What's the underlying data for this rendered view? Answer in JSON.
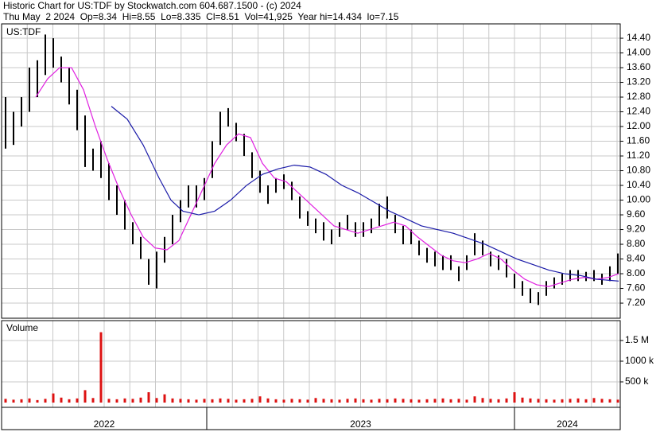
{
  "header": {
    "line1": "Historic Chart for US:TDF by Stockwatch.com 604.687.1500 - (c) 2024",
    "line2": "Thu May  2 2024  Op=8.34  Hi=8.55  Lo=8.335  Cl=8.51  Vol=41,925  Year hi=14.434  lo=7.15"
  },
  "chart_data": [
    {
      "type": "ohlc",
      "symbol": "US:TDF",
      "color": "#000000",
      "xlim": [
        -0.5,
        77.3
      ],
      "ylim": [
        6.79,
        14.79
      ],
      "grid": true,
      "yticks": [
        {
          "value": 7.2,
          "label": "7.20"
        },
        {
          "value": 7.6,
          "label": "7.60"
        },
        {
          "value": 8,
          "label": "8.00"
        },
        {
          "value": 8.4,
          "label": "8.40"
        },
        {
          "value": 8.8,
          "label": "8.80"
        },
        {
          "value": 9.2,
          "label": "9.20"
        },
        {
          "value": 9.6,
          "label": "9.60"
        },
        {
          "value": 10,
          "label": "10.00"
        },
        {
          "value": 10.4,
          "label": "10.40"
        },
        {
          "value": 10.8,
          "label": "10.80"
        },
        {
          "value": 11.2,
          "label": "11.20"
        },
        {
          "value": 11.6,
          "label": "11.60"
        },
        {
          "value": 12,
          "label": "12.00"
        },
        {
          "value": 12.4,
          "label": "12.40"
        },
        {
          "value": 12.8,
          "label": "12.80"
        },
        {
          "value": 13.2,
          "label": "13.20"
        },
        {
          "value": 13.6,
          "label": "13.60"
        },
        {
          "value": 14,
          "label": "14.00"
        },
        {
          "value": 14.4,
          "label": "14.40"
        }
      ],
      "high": [
        12.8,
        12.4,
        12.8,
        13.6,
        13.8,
        14.5,
        14.4,
        13.9,
        13.6,
        13.0,
        12.3,
        11.4,
        11.6,
        11.0,
        10.4,
        10.0,
        9.4,
        9.0,
        8.4,
        8.6,
        9.0,
        9.6,
        10.0,
        10.4,
        10.4,
        10.6,
        11.6,
        12.4,
        12.5,
        12.1,
        11.8,
        11.3,
        10.8,
        10.4,
        10.6,
        10.7,
        10.5,
        10.1,
        9.7,
        9.5,
        9.4,
        9.2,
        9.4,
        9.6,
        9.4,
        9.4,
        9.5,
        9.9,
        10.1,
        9.6,
        9.3,
        9.2,
        8.9,
        8.7,
        8.6,
        8.5,
        8.5,
        8.2,
        8.5,
        9.1,
        8.9,
        8.6,
        8.5,
        8.4,
        8.0,
        7.8,
        7.6,
        7.5,
        7.8,
        7.9,
        8.0,
        8.1,
        8.1,
        8.05,
        8.1,
        8.0,
        8.2,
        8.55
      ],
      "low": [
        11.4,
        11.5,
        12.0,
        12.4,
        12.8,
        13.4,
        13.6,
        13.2,
        12.6,
        11.9,
        10.9,
        10.8,
        10.6,
        10.0,
        9.6,
        9.2,
        8.8,
        8.4,
        7.7,
        7.6,
        8.3,
        8.8,
        9.4,
        9.8,
        9.8,
        10.0,
        10.6,
        11.5,
        12.0,
        11.6,
        11.2,
        10.6,
        10.2,
        9.9,
        10.2,
        10.3,
        10.0,
        9.5,
        9.3,
        9.1,
        8.9,
        8.8,
        9.0,
        9.2,
        9.0,
        9.0,
        9.1,
        9.3,
        9.5,
        9.1,
        8.8,
        8.8,
        8.5,
        8.3,
        8.2,
        8.1,
        8.1,
        7.8,
        8.1,
        8.5,
        8.5,
        8.2,
        8.1,
        7.9,
        7.6,
        7.4,
        7.2,
        7.15,
        7.4,
        7.6,
        7.7,
        7.8,
        7.8,
        7.8,
        7.8,
        7.7,
        7.8,
        8.0
      ],
      "series": [
        {
          "color": "#e020e0",
          "x": [
            3.8,
            5.3,
            6.8,
            8.3,
            9.8,
            11.3,
            12.8,
            14.3,
            15.8,
            17.3,
            18.8,
            20.3,
            21.8,
            23.3,
            24.8,
            26.3,
            27.8,
            29.3,
            30.8,
            32.3,
            33.8,
            35.3,
            36.8,
            38.3,
            39.8,
            41.3,
            42.8,
            44.3,
            45.8,
            47.3,
            48.8,
            50.3,
            51.8,
            53.3,
            54.8,
            56.3,
            57.8,
            59.3,
            60.8,
            62.3,
            63.8,
            65.3,
            66.8,
            68.3,
            69.8,
            71.3,
            72.8,
            74.3,
            75.8,
            77.1
          ],
          "values": [
            12.8,
            13.3,
            13.6,
            13.6,
            13.0,
            12.0,
            11.1,
            10.3,
            9.6,
            9.0,
            8.7,
            8.65,
            8.9,
            9.6,
            10.3,
            11.0,
            11.5,
            11.8,
            11.7,
            11.0,
            10.6,
            10.5,
            10.2,
            9.9,
            9.6,
            9.3,
            9.2,
            9.1,
            9.2,
            9.3,
            9.4,
            9.3,
            9.0,
            8.75,
            8.5,
            8.35,
            8.3,
            8.4,
            8.55,
            8.4,
            8.1,
            7.85,
            7.7,
            7.65,
            7.75,
            7.85,
            7.9,
            7.85,
            7.9,
            8.0
          ]
        },
        {
          "color": "#1a1aa8",
          "x": [
            13.3,
            15.3,
            17.3,
            19.3,
            20.8,
            22.3,
            24.3,
            26.3,
            28.3,
            30.3,
            32.3,
            34.3,
            36.3,
            38.3,
            40.3,
            42.3,
            44.3,
            46.3,
            48.3,
            50.3,
            52.3,
            54.3,
            56.3,
            58.3,
            60.3,
            62.3,
            64.3,
            66.3,
            68.3,
            70.3,
            72.3,
            74.3,
            77.1
          ],
          "values": [
            12.55,
            12.2,
            11.5,
            10.6,
            10.0,
            9.7,
            9.6,
            9.7,
            10.0,
            10.4,
            10.7,
            10.85,
            10.95,
            10.9,
            10.7,
            10.4,
            10.2,
            9.95,
            9.7,
            9.5,
            9.3,
            9.2,
            9.1,
            8.95,
            8.8,
            8.6,
            8.4,
            8.25,
            8.1,
            8.0,
            7.95,
            7.85,
            7.8
          ]
        }
      ],
      "year_boundaries": [
        25.3,
        64.0
      ],
      "year_labels": [
        "2022",
        "2023",
        "2024"
      ]
    },
    {
      "type": "bar",
      "title": "Volume",
      "color": "#dd1111",
      "ylim": [
        -115000,
        1980000
      ],
      "grid": true,
      "yticks": [
        {
          "value": 500000,
          "label": "500 k"
        },
        {
          "value": 1000000,
          "label": "1000 k"
        },
        {
          "value": 1500000,
          "label": "1.5 M"
        }
      ],
      "values": [
        90000,
        70000,
        80000,
        100000,
        60000,
        90000,
        220000,
        120000,
        80000,
        100000,
        300000,
        110000,
        1700000,
        90000,
        80000,
        100000,
        90000,
        120000,
        250000,
        110000,
        200000,
        100000,
        90000,
        80000,
        70000,
        90000,
        80000,
        100000,
        90000,
        70000,
        80000,
        90000,
        150000,
        100000,
        80000,
        70000,
        90000,
        80000,
        70000,
        110000,
        90000,
        80000,
        70000,
        90000,
        100000,
        80000,
        70000,
        90000,
        80000,
        100000,
        90000,
        80000,
        70000,
        80000,
        90000,
        100000,
        80000,
        90000,
        70000,
        150000,
        110000,
        90000,
        80000,
        100000,
        250000,
        120000,
        100000,
        90000,
        80000,
        70000,
        80000,
        90000,
        100000,
        80000,
        110000,
        90000,
        80000,
        70000
      ]
    }
  ]
}
